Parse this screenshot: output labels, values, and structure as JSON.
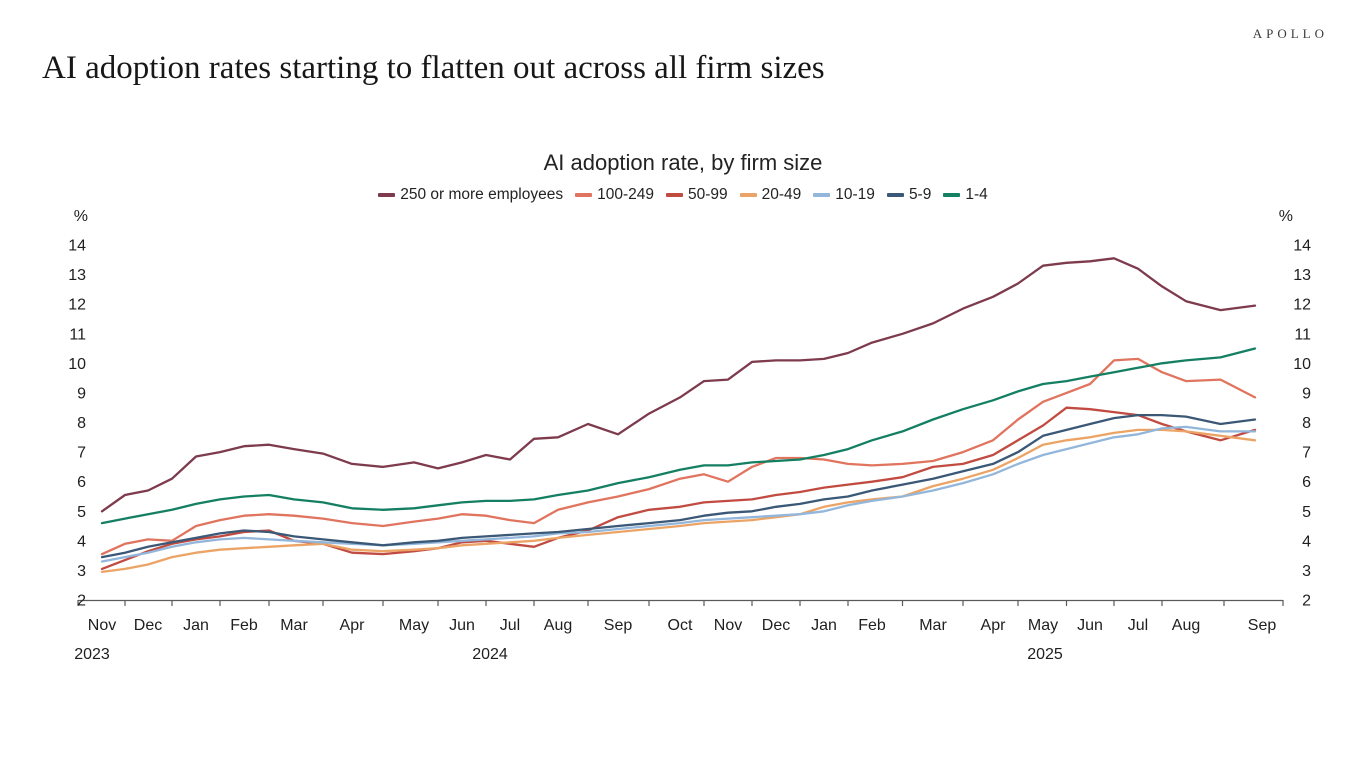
{
  "page": {
    "brand": "APOLLO",
    "title": "AI adoption rates starting to flatten out across all firm sizes"
  },
  "chart_data": {
    "type": "line",
    "title": "AI adoption rate, by firm size",
    "unit_label": "%",
    "ylim": [
      2,
      14
    ],
    "yticks": [
      2,
      3,
      4,
      5,
      6,
      7,
      8,
      9,
      10,
      11,
      12,
      13,
      14
    ],
    "grid": false,
    "legend_position": "top",
    "x_months": [
      "Nov",
      "Dec",
      "Jan",
      "Feb",
      "Mar",
      "Apr",
      "May",
      "Jun",
      "Jul",
      "Aug",
      "Sep",
      "Oct",
      "Nov",
      "Dec",
      "Jan",
      "Feb",
      "Mar",
      "Apr",
      "May",
      "Jun",
      "Jul",
      "Aug",
      "Sep"
    ],
    "x_years": [
      {
        "label": "2023"
      },
      {
        "label": "2024"
      },
      {
        "label": "2025"
      }
    ],
    "x_note": "values are semi-monthly (2 per month) from Nov 2023 through Sep 2025",
    "series": [
      {
        "name": "250 or more employees",
        "color": "#7d3b4d",
        "values": [
          5.0,
          5.55,
          5.7,
          6.1,
          6.85,
          7.0,
          7.2,
          7.25,
          7.1,
          6.95,
          6.6,
          6.5,
          6.65,
          6.45,
          6.65,
          6.9,
          6.75,
          7.45,
          7.5,
          7.95,
          7.6,
          8.3,
          8.85,
          9.4,
          9.45,
          10.05,
          10.1,
          10.1,
          10.15,
          10.35,
          10.7,
          11.0,
          11.35,
          11.85,
          12.25,
          12.7,
          13.3,
          13.4,
          13.45,
          13.55,
          13.2,
          12.6,
          12.1,
          11.8,
          11.95
        ]
      },
      {
        "name": "100-249",
        "color": "#e1745e",
        "values": [
          3.55,
          3.9,
          4.05,
          4.0,
          4.5,
          4.7,
          4.85,
          4.9,
          4.85,
          4.75,
          4.6,
          4.5,
          4.65,
          4.75,
          4.9,
          4.85,
          4.7,
          4.6,
          5.05,
          5.3,
          5.5,
          5.75,
          6.1,
          6.25,
          6.0,
          6.5,
          6.8,
          6.8,
          6.75,
          6.6,
          6.55,
          6.6,
          6.7,
          7.0,
          7.4,
          8.1,
          8.7,
          9.0,
          9.3,
          10.1,
          10.15,
          9.7,
          9.4,
          9.45,
          8.85
        ]
      },
      {
        "name": "50-99",
        "color": "#c14b41",
        "values": [
          3.05,
          3.35,
          3.65,
          3.9,
          4.05,
          4.15,
          4.3,
          4.35,
          4.0,
          3.9,
          3.6,
          3.55,
          3.65,
          3.75,
          3.95,
          4.0,
          3.9,
          3.8,
          4.1,
          4.35,
          4.8,
          5.05,
          5.15,
          5.3,
          5.35,
          5.4,
          5.55,
          5.65,
          5.8,
          5.9,
          6.0,
          6.15,
          6.5,
          6.6,
          6.9,
          7.4,
          7.9,
          8.5,
          8.45,
          8.35,
          8.25,
          7.95,
          7.7,
          7.4,
          7.75
        ]
      },
      {
        "name": "20-49",
        "color": "#eca466",
        "values": [
          2.95,
          3.05,
          3.2,
          3.45,
          3.6,
          3.7,
          3.75,
          3.8,
          3.85,
          3.9,
          3.7,
          3.65,
          3.7,
          3.75,
          3.85,
          3.9,
          3.95,
          4.0,
          4.1,
          4.2,
          4.3,
          4.4,
          4.5,
          4.6,
          4.65,
          4.7,
          4.8,
          4.9,
          5.15,
          5.3,
          5.4,
          5.5,
          5.85,
          6.1,
          6.4,
          6.8,
          7.25,
          7.4,
          7.5,
          7.65,
          7.75,
          7.75,
          7.7,
          7.55,
          7.4
        ]
      },
      {
        "name": "10-19",
        "color": "#93b6db",
        "values": [
          3.3,
          3.45,
          3.6,
          3.8,
          3.95,
          4.05,
          4.1,
          4.05,
          4.0,
          3.95,
          3.9,
          3.85,
          3.9,
          3.95,
          4.0,
          4.05,
          4.1,
          4.15,
          4.25,
          4.3,
          4.4,
          4.5,
          4.6,
          4.7,
          4.75,
          4.8,
          4.85,
          4.9,
          5.0,
          5.2,
          5.35,
          5.5,
          5.7,
          5.95,
          6.25,
          6.6,
          6.9,
          7.1,
          7.3,
          7.5,
          7.6,
          7.8,
          7.85,
          7.7,
          7.7
        ]
      },
      {
        "name": "5-9",
        "color": "#3b5876",
        "values": [
          3.45,
          3.6,
          3.8,
          3.95,
          4.1,
          4.25,
          4.35,
          4.3,
          4.15,
          4.05,
          3.95,
          3.85,
          3.95,
          4.0,
          4.1,
          4.15,
          4.2,
          4.25,
          4.3,
          4.4,
          4.5,
          4.6,
          4.7,
          4.85,
          4.95,
          5.0,
          5.15,
          5.25,
          5.4,
          5.5,
          5.7,
          5.9,
          6.1,
          6.35,
          6.6,
          7.0,
          7.55,
          7.75,
          7.95,
          8.15,
          8.25,
          8.25,
          8.2,
          7.95,
          8.1
        ]
      },
      {
        "name": "1-4",
        "color": "#147f62",
        "values": [
          4.6,
          4.75,
          4.9,
          5.05,
          5.25,
          5.4,
          5.5,
          5.55,
          5.4,
          5.3,
          5.1,
          5.05,
          5.1,
          5.2,
          5.3,
          5.35,
          5.35,
          5.4,
          5.55,
          5.7,
          5.95,
          6.15,
          6.4,
          6.55,
          6.55,
          6.65,
          6.7,
          6.75,
          6.9,
          7.1,
          7.4,
          7.7,
          8.1,
          8.45,
          8.75,
          9.05,
          9.3,
          9.4,
          9.55,
          9.7,
          9.85,
          10.0,
          10.1,
          10.2,
          10.5
        ]
      }
    ]
  }
}
